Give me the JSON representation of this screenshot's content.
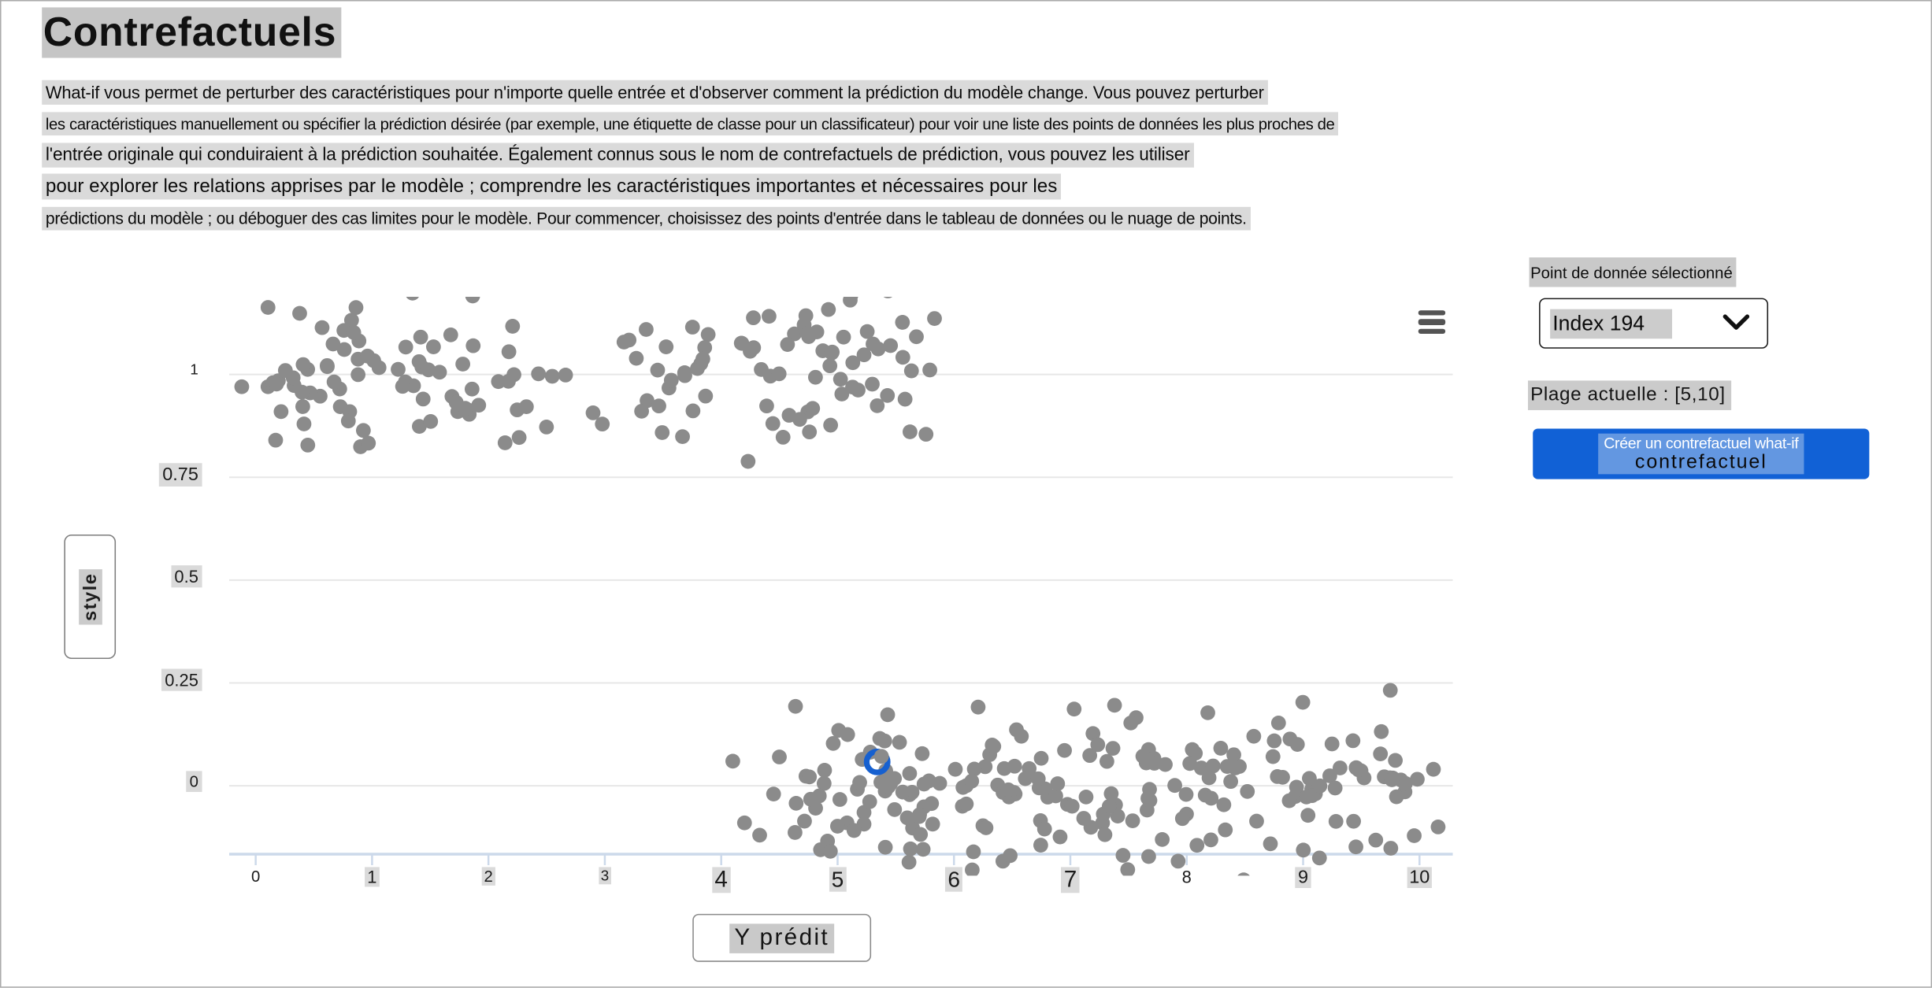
{
  "page": {
    "title": "Contrefactuels"
  },
  "description_lines": [
    "What-if vous permet de perturber des caractéristiques pour n'importe quelle entrée et d'observer comment la prédiction du modèle change. Vous pouvez perturber",
    "les caractéristiques manuellement ou spécifier la prédiction désirée (par exemple, une étiquette de classe pour un classificateur) pour voir une liste des points de données les plus proches de",
    "l'entrée originale qui conduiraient à la prédiction souhaitée. Également connus sous le nom de contrefactuels de prédiction, vous pouvez les utiliser",
    "pour explorer les relations apprises par le modèle ; comprendre les caractéristiques importantes et nécessaires pour les",
    "prédictions du modèle ; ou déboguer des cas limites pour le modèle. Pour commencer, choisissez des points d'entrée dans le tableau de données ou le nuage de points."
  ],
  "panel": {
    "selected_point_label": "Point de donnée sélectionné",
    "dropdown_value": "Index 194",
    "range_label": "Plage actuelle : [5,10]",
    "button_line1": "Créer un contrefactuel what-if",
    "button_line2": "contrefactuel",
    "button_color": "#1161d6"
  },
  "modebar": {
    "menu_icon": "hamburger-icon"
  },
  "chart_data": {
    "type": "scatter",
    "title": "",
    "xlabel": "Y prédit",
    "ylabel": "style",
    "x_ticks": [
      "0",
      "1",
      "2",
      "3",
      "4",
      "5",
      "6",
      "7",
      "8",
      "9",
      "10"
    ],
    "y_ticks": [
      "0",
      "0.25",
      "0.5",
      "0.75",
      "1"
    ],
    "xlim": [
      -0.6,
      10.6
    ],
    "ylim": [
      -0.35,
      1.4
    ],
    "grid": true,
    "legend_position": "none",
    "marker_color": "#8b8b8b",
    "marker_radius": 6,
    "grid_color": "#e7e7e7",
    "axis_color": "#ccd9ea",
    "seed": 20,
    "clusters": [
      {
        "name": "classe-style-1",
        "y_center": 1,
        "n": 168,
        "x_min": 0.08,
        "x_max": 5.85,
        "y_jitter": 0.125,
        "sparse_range": [
          2.55,
          3.3
        ],
        "sparse_keep": 0.22
      },
      {
        "name": "classe-style-0",
        "y_center": 0,
        "n": 218,
        "x_min": 4.6,
        "x_max": 10.0,
        "y_jitter": 0.125
      }
    ],
    "extra_points": [
      [
        -0.12,
        0.97
      ],
      [
        4.1,
        0.06
      ],
      [
        4.2,
        -0.09
      ],
      [
        4.33,
        -0.12
      ],
      [
        4.45,
        -0.02
      ],
      [
        4.5,
        0.07
      ],
      [
        10.12,
        0.04
      ],
      [
        10.16,
        -0.1
      ]
    ],
    "selected_point": {
      "x": 5.34,
      "y": 0.058,
      "ring_color": "#1660d0"
    }
  }
}
